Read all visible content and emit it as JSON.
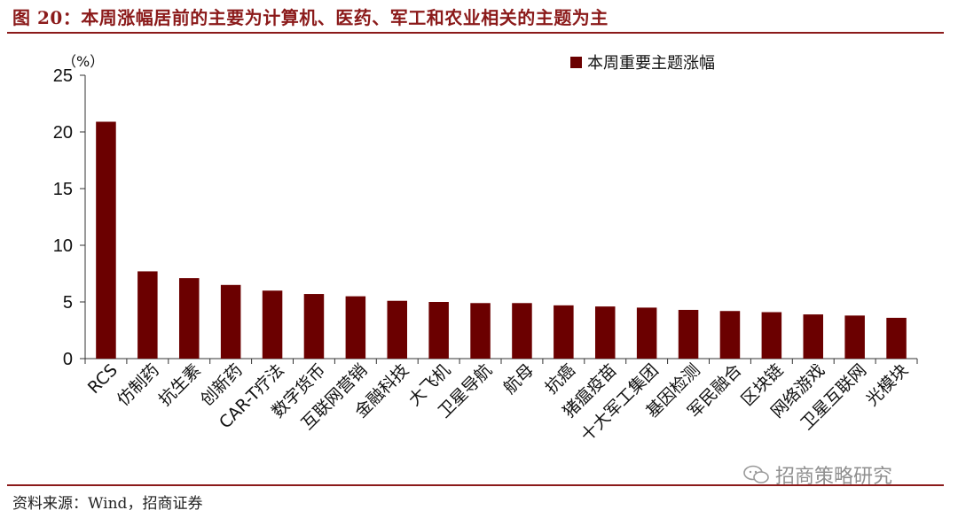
{
  "header": {
    "title": "图 20：本周涨幅居前的主要为计算机、医药、军工和农业相关的主题为主"
  },
  "footer": {
    "source": "资料来源：Wind，招商证券",
    "watermark": "招商策略研究"
  },
  "colors": {
    "bar": "#6B0000",
    "accent": "#8B1A1A"
  },
  "chart_data": {
    "type": "bar",
    "title": "",
    "ylabel": "（%）",
    "xlabel": "",
    "ylim": [
      0,
      25
    ],
    "yticks": [
      0,
      5,
      10,
      15,
      20,
      25
    ],
    "legend_position": "top-right",
    "categories": [
      "RCS",
      "仿制药",
      "抗生素",
      "创新药",
      "CAR-T疗法",
      "数字货币",
      "互联网营销",
      "金融科技",
      "大飞机",
      "卫星导航",
      "航母",
      "抗癌",
      "猪瘟疫苗",
      "十大军工集团",
      "基因检测",
      "军民融合",
      "区块链",
      "网络游戏",
      "卫星互联网",
      "光模块"
    ],
    "series": [
      {
        "name": "本周重要主题涨幅",
        "values": [
          20.9,
          7.7,
          7.1,
          6.5,
          6.0,
          5.7,
          5.5,
          5.1,
          5.0,
          4.9,
          4.9,
          4.7,
          4.6,
          4.5,
          4.3,
          4.2,
          4.1,
          3.9,
          3.8,
          3.6
        ]
      }
    ],
    "grid": false
  }
}
